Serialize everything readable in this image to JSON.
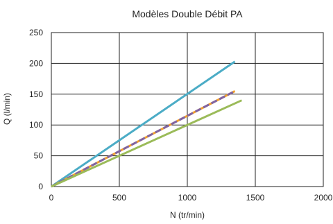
{
  "chart_data": {
    "type": "line",
    "title": "Modèles Double Débit PA",
    "xlabel": "N (tr/min)",
    "ylabel": "Q (l/min)",
    "xlim": [
      0,
      2000
    ],
    "ylim": [
      0,
      250
    ],
    "xticks": [
      0,
      500,
      1000,
      1500,
      2000
    ],
    "yticks": [
      0,
      50,
      100,
      150,
      200,
      250
    ],
    "grid": true,
    "series": [
      {
        "x": [
          0,
          1350
        ],
        "y": [
          0,
          203
        ],
        "color": "#4bacc6",
        "dash": "solid"
      },
      {
        "x": [
          0,
          1350
        ],
        "y": [
          0,
          155
        ],
        "color": "#f0a030",
        "dash": "solid"
      },
      {
        "x": [
          0,
          1350
        ],
        "y": [
          0,
          155
        ],
        "color": "#8064a2",
        "dash": "dashed"
      },
      {
        "x": [
          0,
          1400
        ],
        "y": [
          0,
          140
        ],
        "color": "#9bbb59",
        "dash": "solid"
      }
    ]
  }
}
